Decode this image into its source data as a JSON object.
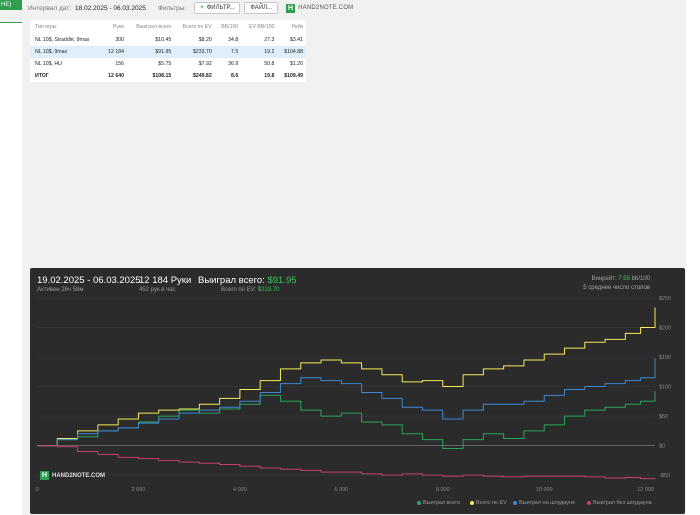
{
  "tab": {
    "label": "HE)"
  },
  "toolbar": {
    "date_label": "Интервал дат:",
    "date_range": "18.02.2025 - 06.03.2025",
    "filters_label": "Фильтры:",
    "filters_button": "ФИЛЬТР...",
    "files_button": "ФАЙЛ...",
    "logo_text": "HAND2NOTE.COM"
  },
  "table": {
    "headers": [
      "Тип игры",
      "Руки",
      "Выиграл всего",
      "Всего по EV",
      "BB/100",
      "EV BB/100",
      "Рейк"
    ],
    "rows": [
      {
        "game": "NL 10$, Straddle, 9max",
        "hands": "300",
        "won": "$10.45",
        "ev": "$8.20",
        "bb100": "34.8",
        "evbb100": "27.3",
        "rake": "$3.41"
      },
      {
        "game": "NL 10$, 9max",
        "hands": "12 184",
        "won": "$91.95",
        "ev": "$233.70",
        "bb100": "7.5",
        "evbb100": "19.2",
        "rake": "$104.88"
      },
      {
        "game": "NL 10$, HU",
        "hands": "156",
        "won": "$5.75",
        "ev": "$7.92",
        "bb100": "36.9",
        "evbb100": "50.8",
        "rake": "$1.20"
      }
    ],
    "total": {
      "game": "ИТОГ",
      "hands": "12 640",
      "won": "$108.15",
      "ev": "$249.82",
      "bb100": "8.6",
      "evbb100": "19.8",
      "rake": "$109.49"
    }
  },
  "chart_header": {
    "date_range": "19.02.2025 - 06.03.2025",
    "active": "Активен 26ч 58м",
    "hands": "12 184 Руки",
    "hands_per_hour": "452 рук в час",
    "won_label": "Выиграл всего:",
    "won_value": "$91.95",
    "ev_label": "Всего по EV:",
    "ev_value": "$233.70",
    "winrate_label": "Винрейт:",
    "winrate_value": "7.55",
    "winrate_unit": "bb/100",
    "tables_info": "5 среднее число столов",
    "logo_text": "HAND2NOTE.COM"
  },
  "colors": {
    "won": "#27a659",
    "ev": "#f4ec5a",
    "showdown": "#3f86d4",
    "no_showdown": "#c73e72"
  },
  "chart_data": {
    "type": "line",
    "xlabel": "",
    "ylabel": "",
    "x_ticks": [
      0,
      2000,
      4000,
      6000,
      8000,
      10000,
      12000
    ],
    "x_tick_labels": [
      "0",
      "2 000",
      "4 000",
      "6 000",
      "8 000",
      "10 000",
      "12 000"
    ],
    "y_ticks": [
      -50,
      0,
      50,
      100,
      150,
      200,
      250
    ],
    "y_tick_labels": [
      "-$50",
      "$0",
      "$50",
      "$100",
      "$150",
      "$200",
      "$250"
    ],
    "xlim": [
      0,
      12184
    ],
    "ylim": [
      -60,
      250
    ],
    "grid": true,
    "legend": "bottom-right",
    "series": [
      {
        "name": "Выиграл всего",
        "color": "#27a659",
        "points": [
          [
            0,
            0
          ],
          [
            400,
            10
          ],
          [
            800,
            15
          ],
          [
            1200,
            25
          ],
          [
            1600,
            30
          ],
          [
            2000,
            40
          ],
          [
            2400,
            50
          ],
          [
            2800,
            60
          ],
          [
            3200,
            55
          ],
          [
            3600,
            62
          ],
          [
            4000,
            70
          ],
          [
            4400,
            85
          ],
          [
            4800,
            75
          ],
          [
            5200,
            60
          ],
          [
            5600,
            50
          ],
          [
            6000,
            55
          ],
          [
            6400,
            40
          ],
          [
            6800,
            35
          ],
          [
            7200,
            20
          ],
          [
            7600,
            10
          ],
          [
            8000,
            -5
          ],
          [
            8400,
            10
          ],
          [
            8800,
            20
          ],
          [
            9200,
            12
          ],
          [
            9600,
            25
          ],
          [
            10000,
            35
          ],
          [
            10400,
            50
          ],
          [
            10800,
            60
          ],
          [
            11200,
            65
          ],
          [
            11600,
            70
          ],
          [
            11900,
            75
          ],
          [
            12184,
            92
          ]
        ]
      },
      {
        "name": "Всего по EV",
        "color": "#f4ec5a",
        "points": [
          [
            0,
            0
          ],
          [
            400,
            12
          ],
          [
            800,
            25
          ],
          [
            1200,
            35
          ],
          [
            1600,
            45
          ],
          [
            2000,
            55
          ],
          [
            2400,
            60
          ],
          [
            2800,
            62
          ],
          [
            3200,
            70
          ],
          [
            3600,
            80
          ],
          [
            4000,
            95
          ],
          [
            4400,
            110
          ],
          [
            4800,
            130
          ],
          [
            5200,
            140
          ],
          [
            5600,
            145
          ],
          [
            6000,
            140
          ],
          [
            6400,
            130
          ],
          [
            6800,
            120
          ],
          [
            7200,
            108
          ],
          [
            7600,
            110
          ],
          [
            8000,
            100
          ],
          [
            8400,
            120
          ],
          [
            8800,
            130
          ],
          [
            9200,
            135
          ],
          [
            9600,
            145
          ],
          [
            10000,
            155
          ],
          [
            10400,
            165
          ],
          [
            10800,
            175
          ],
          [
            11200,
            180
          ],
          [
            11600,
            190
          ],
          [
            11900,
            200
          ],
          [
            12184,
            234
          ]
        ]
      },
      {
        "name": "Выиграл на шоудауне",
        "color": "#3f86d4",
        "points": [
          [
            0,
            0
          ],
          [
            400,
            10
          ],
          [
            800,
            20
          ],
          [
            1200,
            25
          ],
          [
            1600,
            30
          ],
          [
            2000,
            38
          ],
          [
            2400,
            45
          ],
          [
            2800,
            55
          ],
          [
            3200,
            60
          ],
          [
            3600,
            65
          ],
          [
            4000,
            75
          ],
          [
            4400,
            90
          ],
          [
            4800,
            105
          ],
          [
            5200,
            115
          ],
          [
            5600,
            110
          ],
          [
            6000,
            105
          ],
          [
            6400,
            90
          ],
          [
            6800,
            80
          ],
          [
            7200,
            65
          ],
          [
            7600,
            60
          ],
          [
            8000,
            45
          ],
          [
            8400,
            60
          ],
          [
            8800,
            70
          ],
          [
            9200,
            70
          ],
          [
            9600,
            75
          ],
          [
            10000,
            85
          ],
          [
            10400,
            95
          ],
          [
            10800,
            100
          ],
          [
            11200,
            105
          ],
          [
            11600,
            110
          ],
          [
            11900,
            115
          ],
          [
            12184,
            148
          ]
        ]
      },
      {
        "name": "Выиграл без шоудауна",
        "color": "#c73e72",
        "points": [
          [
            0,
            0
          ],
          [
            400,
            -2
          ],
          [
            800,
            -10
          ],
          [
            1200,
            -15
          ],
          [
            1600,
            -20
          ],
          [
            2000,
            -22
          ],
          [
            2400,
            -25
          ],
          [
            2800,
            -28
          ],
          [
            3200,
            -30
          ],
          [
            3600,
            -32
          ],
          [
            4000,
            -35
          ],
          [
            4400,
            -38
          ],
          [
            4800,
            -40
          ],
          [
            5200,
            -42
          ],
          [
            5600,
            -45
          ],
          [
            6000,
            -45
          ],
          [
            6400,
            -48
          ],
          [
            6800,
            -50
          ],
          [
            7200,
            -48
          ],
          [
            7600,
            -50
          ],
          [
            8000,
            -52
          ],
          [
            8400,
            -50
          ],
          [
            8800,
            -52
          ],
          [
            9200,
            -53
          ],
          [
            9600,
            -52
          ],
          [
            10000,
            -52
          ],
          [
            10400,
            -52
          ],
          [
            10800,
            -53
          ],
          [
            11200,
            -55
          ],
          [
            11600,
            -54
          ],
          [
            11900,
            -56
          ],
          [
            12184,
            -55
          ]
        ]
      }
    ]
  }
}
